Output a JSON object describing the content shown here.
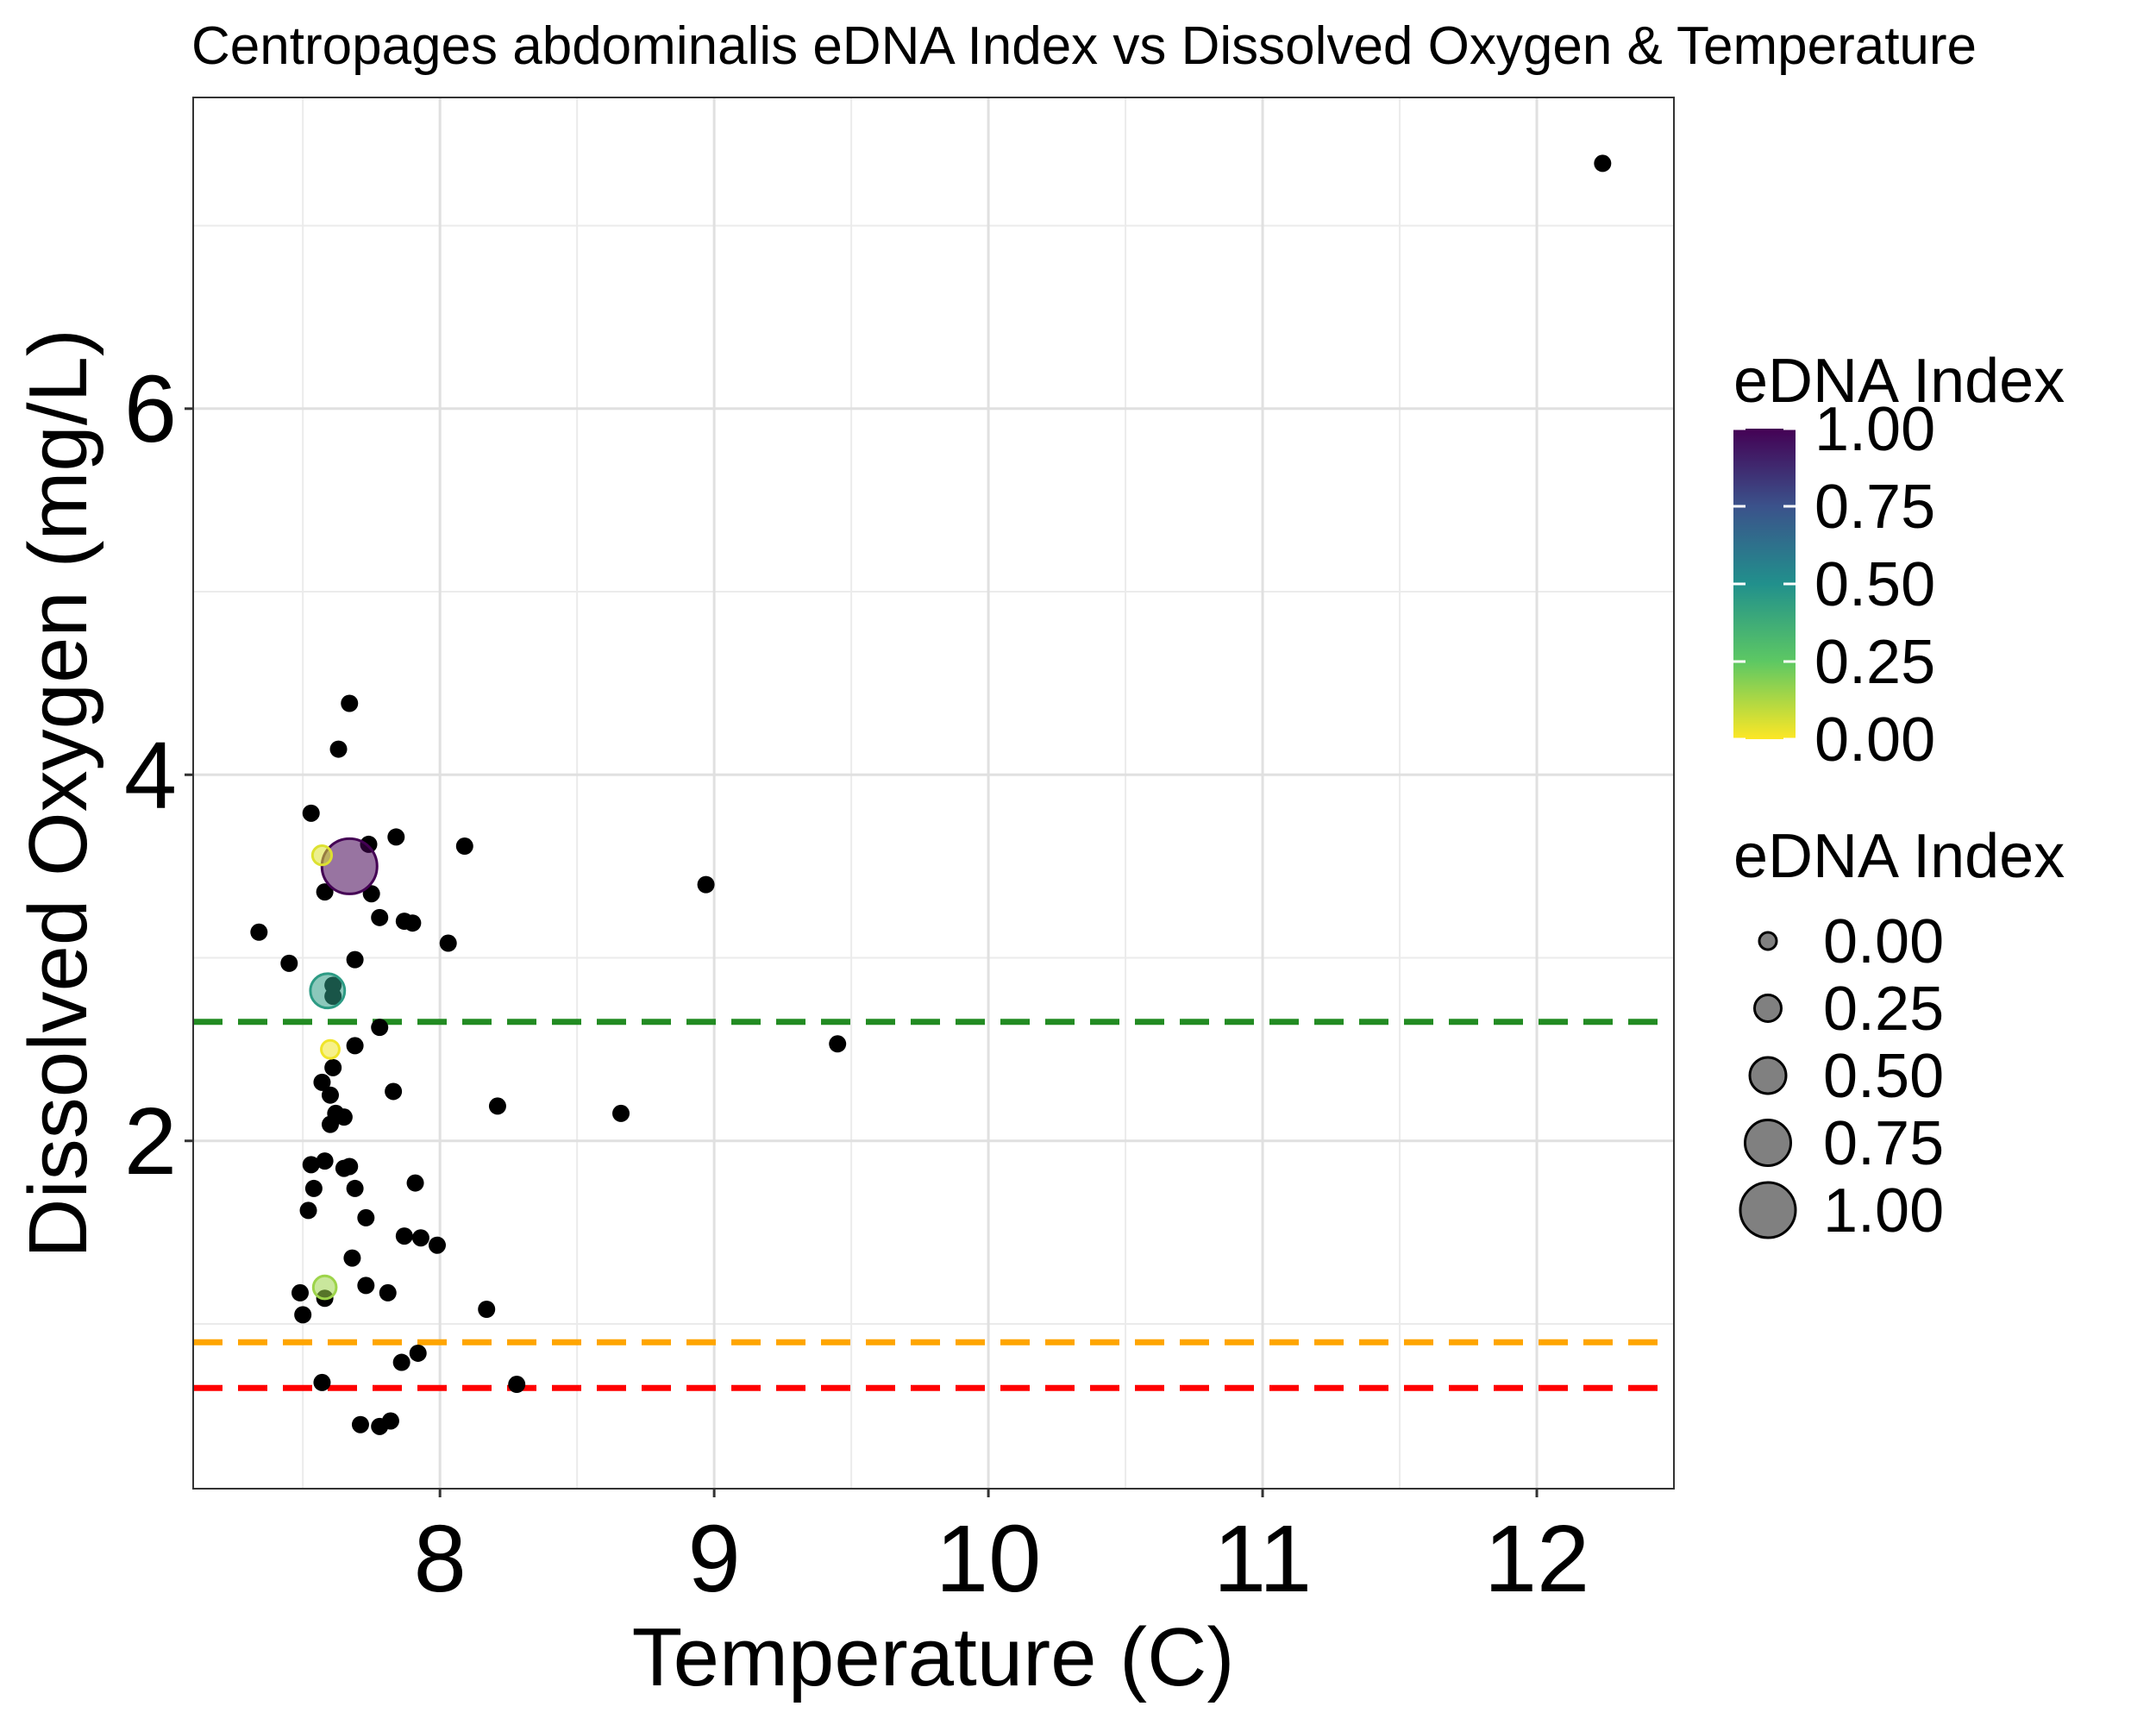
{
  "chart_data": {
    "type": "scatter",
    "title": "Centropages abdominalis eDNA Index vs Dissolved Oxygen & Temperature",
    "xlabel": "Temperature (C)",
    "ylabel": "Dissolved Oxygen (mg/L)",
    "xlim": [
      7.1,
      12.5
    ],
    "ylim": [
      0.1,
      7.7
    ],
    "xticks": [
      8,
      9,
      10,
      11,
      12
    ],
    "yticks": [
      2,
      4,
      6
    ],
    "grid": true,
    "reference_lines": [
      {
        "y": 2.65,
        "color": "#228B22",
        "style": "dashed"
      },
      {
        "y": 0.9,
        "color": "#FFA500",
        "style": "dashed"
      },
      {
        "y": 0.65,
        "color": "#FF0000",
        "style": "dashed"
      }
    ],
    "zero_points": [
      [
        12.24,
        7.34
      ],
      [
        7.67,
        4.39
      ],
      [
        7.63,
        4.14
      ],
      [
        7.53,
        3.79
      ],
      [
        7.84,
        3.66
      ],
      [
        8.09,
        3.61
      ],
      [
        7.74,
        3.62
      ],
      [
        7.58,
        3.36
      ],
      [
        7.75,
        3.35
      ],
      [
        8.97,
        3.4
      ],
      [
        7.78,
        3.22
      ],
      [
        7.87,
        3.2
      ],
      [
        7.9,
        3.19
      ],
      [
        7.34,
        3.14
      ],
      [
        8.03,
        3.08
      ],
      [
        7.45,
        2.97
      ],
      [
        7.69,
        2.99
      ],
      [
        7.61,
        2.85
      ],
      [
        7.61,
        2.79
      ],
      [
        7.78,
        2.62
      ],
      [
        7.69,
        2.52
      ],
      [
        9.45,
        2.53
      ],
      [
        7.57,
        2.32
      ],
      [
        7.6,
        2.25
      ],
      [
        7.61,
        2.4
      ],
      [
        7.83,
        2.27
      ],
      [
        8.21,
        2.19
      ],
      [
        8.66,
        2.15
      ],
      [
        7.62,
        2.15
      ],
      [
        7.65,
        2.13
      ],
      [
        7.6,
        2.09
      ],
      [
        7.58,
        1.89
      ],
      [
        7.53,
        1.87
      ],
      [
        7.65,
        1.85
      ],
      [
        7.67,
        1.86
      ],
      [
        7.91,
        1.77
      ],
      [
        7.54,
        1.74
      ],
      [
        7.69,
        1.74
      ],
      [
        7.52,
        1.62
      ],
      [
        7.73,
        1.58
      ],
      [
        7.87,
        1.48
      ],
      [
        7.93,
        1.47
      ],
      [
        7.99,
        1.43
      ],
      [
        7.68,
        1.36
      ],
      [
        7.73,
        1.21
      ],
      [
        7.49,
        1.17
      ],
      [
        7.81,
        1.17
      ],
      [
        7.58,
        1.14
      ],
      [
        7.5,
        1.05
      ],
      [
        8.17,
        1.08
      ],
      [
        7.92,
        0.84
      ],
      [
        7.86,
        0.79
      ],
      [
        7.57,
        0.68
      ],
      [
        8.28,
        0.67
      ],
      [
        7.71,
        0.45
      ],
      [
        7.78,
        0.44
      ],
      [
        7.82,
        0.47
      ]
    ],
    "colored_points": [
      {
        "x": 7.67,
        "y": 3.5,
        "edna": 1.0
      },
      {
        "x": 7.59,
        "y": 2.82,
        "edna": 0.45
      },
      {
        "x": 7.58,
        "y": 1.2,
        "edna": 0.15
      },
      {
        "x": 7.57,
        "y": 3.56,
        "edna": 0.05
      },
      {
        "x": 7.6,
        "y": 2.5,
        "edna": 0.02
      }
    ],
    "legend_color": {
      "title": "eDNA Index",
      "labels": [
        "1.00",
        "0.75",
        "0.50",
        "0.25",
        "0.00"
      ],
      "values": [
        1.0,
        0.75,
        0.5,
        0.25,
        0.0
      ],
      "colors": [
        "#440154",
        "#3B528B",
        "#21908C",
        "#5DC863",
        "#FDE725"
      ]
    },
    "legend_size": {
      "title": "eDNA Index",
      "labels": [
        "0.00",
        "0.25",
        "0.50",
        "0.75",
        "1.00"
      ],
      "values": [
        0.0,
        0.25,
        0.5,
        0.75,
        1.0
      ],
      "fill": "#808080"
    },
    "legend_position": "right"
  }
}
